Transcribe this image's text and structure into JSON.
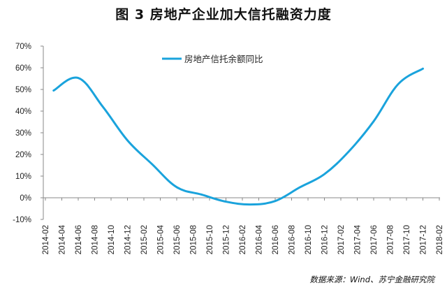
{
  "figure": {
    "title": "图 3  房地产企业加大信托融资力度",
    "source": "数据来源：Wind、苏宁金融研究院"
  },
  "chart_data": {
    "type": "line",
    "title": "",
    "xlabel": "",
    "ylabel": "",
    "categories": [
      "2014-02",
      "2014-04",
      "2014-06",
      "2014-08",
      "2014-10",
      "2014-12",
      "2015-02",
      "2015-04",
      "2015-06",
      "2015-08",
      "2015-10",
      "2015-12",
      "2016-02",
      "2016-04",
      "2016-06",
      "2016-08",
      "2016-10",
      "2016-12",
      "2017-02",
      "2017-04",
      "2017-06",
      "2017-08",
      "2017-10",
      "2017-12",
      "2018-02"
    ],
    "y_ticks": [
      "70%",
      "60%",
      "50%",
      "40%",
      "30%",
      "20%",
      "10%",
      "0%",
      "-10%"
    ],
    "ylim": [
      -10,
      70
    ],
    "grid": false,
    "legend_position": "top-center",
    "series": [
      {
        "name": "房地产信托余额同比",
        "color": "#1AA3DC",
        "points": [
          {
            "x": "2014-03",
            "y": 49.5
          },
          {
            "x": "2014-06",
            "y": 55.3
          },
          {
            "x": "2014-09",
            "y": 42.0
          },
          {
            "x": "2014-12",
            "y": 26.5
          },
          {
            "x": "2015-03",
            "y": 15.5
          },
          {
            "x": "2015-06",
            "y": 4.9
          },
          {
            "x": "2015-09",
            "y": 1.5
          },
          {
            "x": "2015-12",
            "y": -1.8
          },
          {
            "x": "2016-03",
            "y": -3.1
          },
          {
            "x": "2016-06",
            "y": -1.5
          },
          {
            "x": "2016-09",
            "y": 4.8
          },
          {
            "x": "2016-12",
            "y": 10.9
          },
          {
            "x": "2017-03",
            "y": 21.5
          },
          {
            "x": "2017-06",
            "y": 35.3
          },
          {
            "x": "2017-09",
            "y": 52.5
          },
          {
            "x": "2017-12",
            "y": 59.6
          }
        ]
      }
    ]
  }
}
